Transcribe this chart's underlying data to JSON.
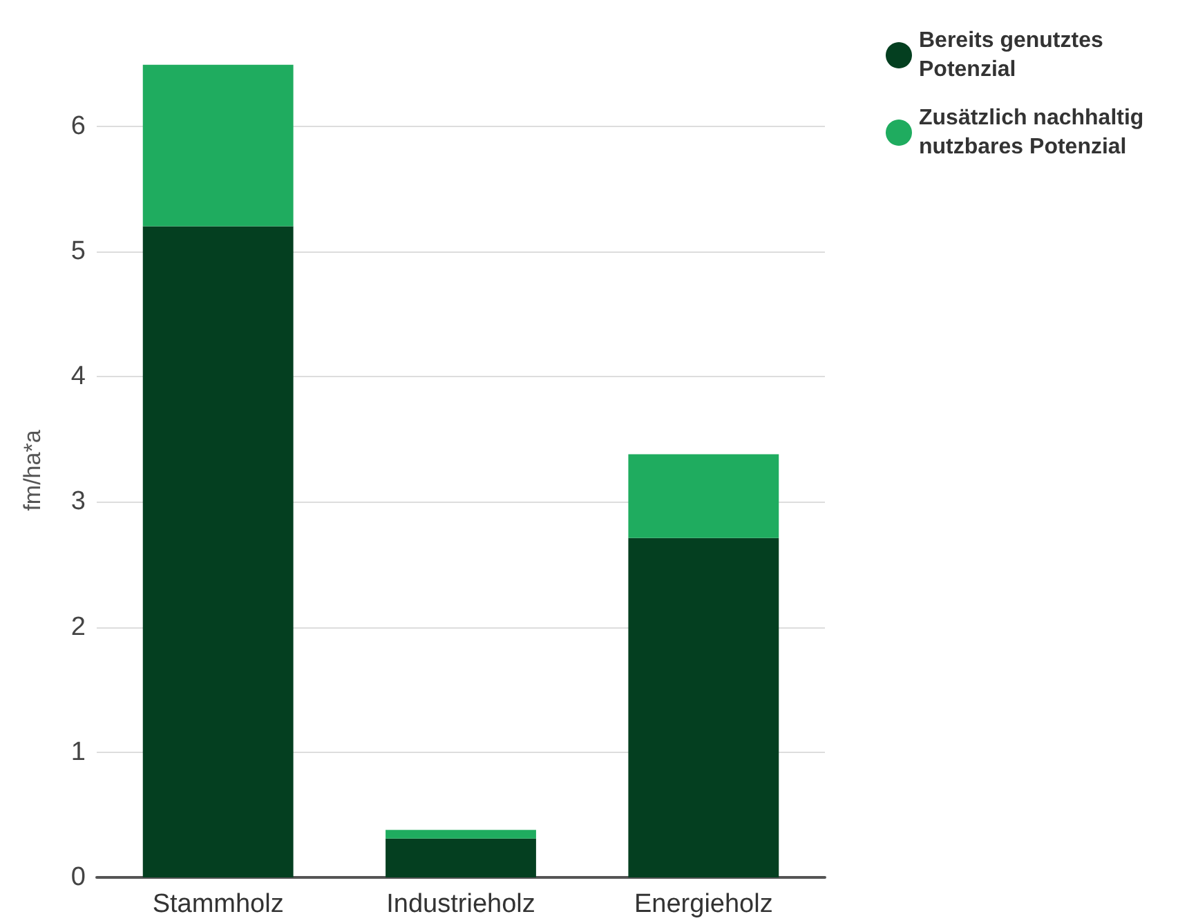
{
  "chart_data": {
    "type": "bar",
    "stacked": true,
    "ylabel": "fm/ha*a",
    "categories": [
      "Stammholz",
      "Industrieholz",
      "Energieholz"
    ],
    "series": [
      {
        "name": "Bereits genutztes Potenzial",
        "color": "#043f20",
        "values": [
          5.2,
          0.31,
          2.71
        ]
      },
      {
        "name": "Zusätzlich nachhaltig nutzbares Potenzial",
        "color": "#1fac5f",
        "values": [
          1.29,
          0.07,
          0.67
        ]
      }
    ],
    "ylim": [
      0,
      6.5
    ],
    "yticks": [
      0,
      1,
      2,
      3,
      4,
      5,
      6
    ],
    "grid": "y",
    "legend": "top right"
  }
}
